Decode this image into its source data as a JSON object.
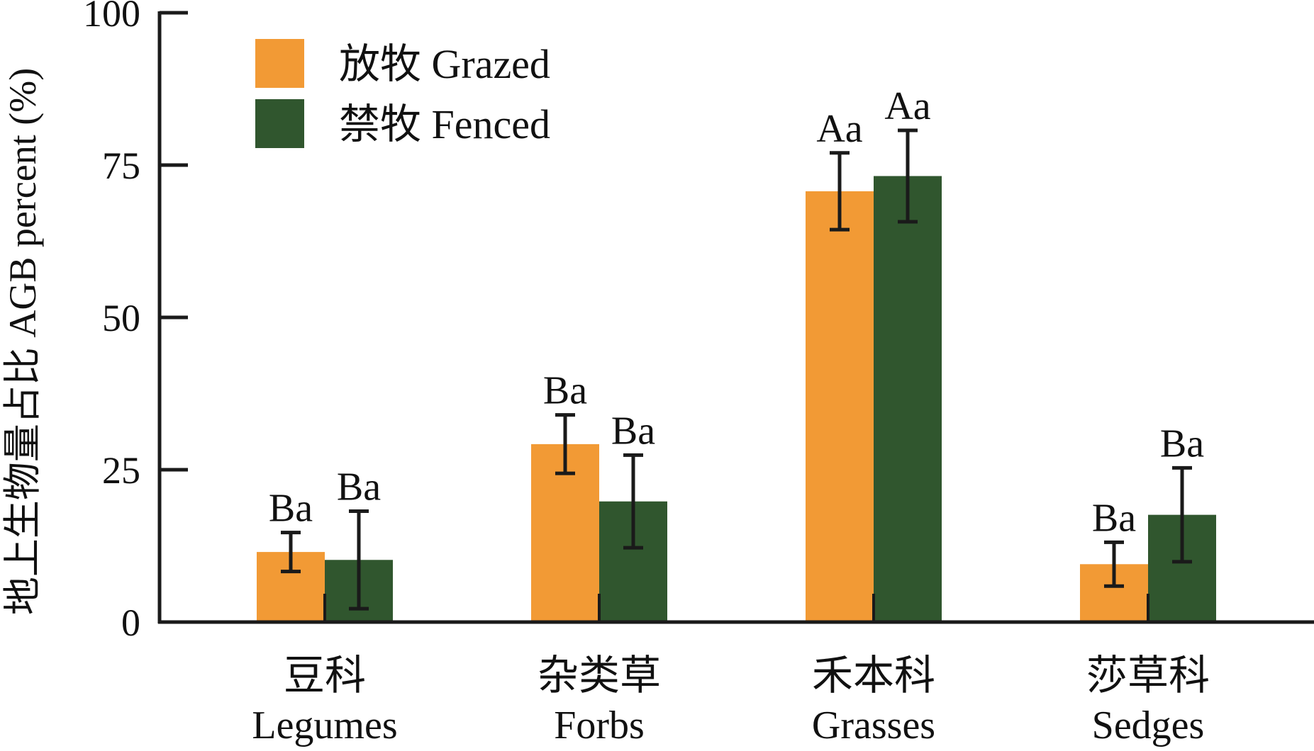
{
  "chart_data": {
    "type": "bar",
    "title": "",
    "xlabel": "",
    "ylabel": "地上生物量占比 AGB percent (%)",
    "ylim": [
      0,
      100
    ],
    "yticks": [
      0,
      25,
      50,
      75,
      100
    ],
    "grid": false,
    "legend_position": "top-left",
    "categories": [
      {
        "cn": "豆科",
        "en": "Legumes"
      },
      {
        "cn": "杂类草",
        "en": "Forbs"
      },
      {
        "cn": "禾本科",
        "en": "Grasses"
      },
      {
        "cn": "莎草科",
        "en": "Sedges"
      }
    ],
    "series": [
      {
        "name": "放牧 Grazed",
        "color": "#F29A35",
        "values": [
          11.5,
          29.2,
          70.7,
          9.5
        ],
        "errors": [
          3.2,
          4.8,
          6.3,
          3.6
        ],
        "labels": [
          "Ba",
          "Ba",
          "Aa",
          "Ba"
        ]
      },
      {
        "name": "禁牧 Fenced",
        "color": "#30562E",
        "values": [
          10.2,
          19.8,
          73.2,
          17.6
        ],
        "errors": [
          8.0,
          7.6,
          7.5,
          7.7
        ],
        "labels": [
          "Ba",
          "Ba",
          "Aa",
          "Ba"
        ]
      }
    ]
  }
}
